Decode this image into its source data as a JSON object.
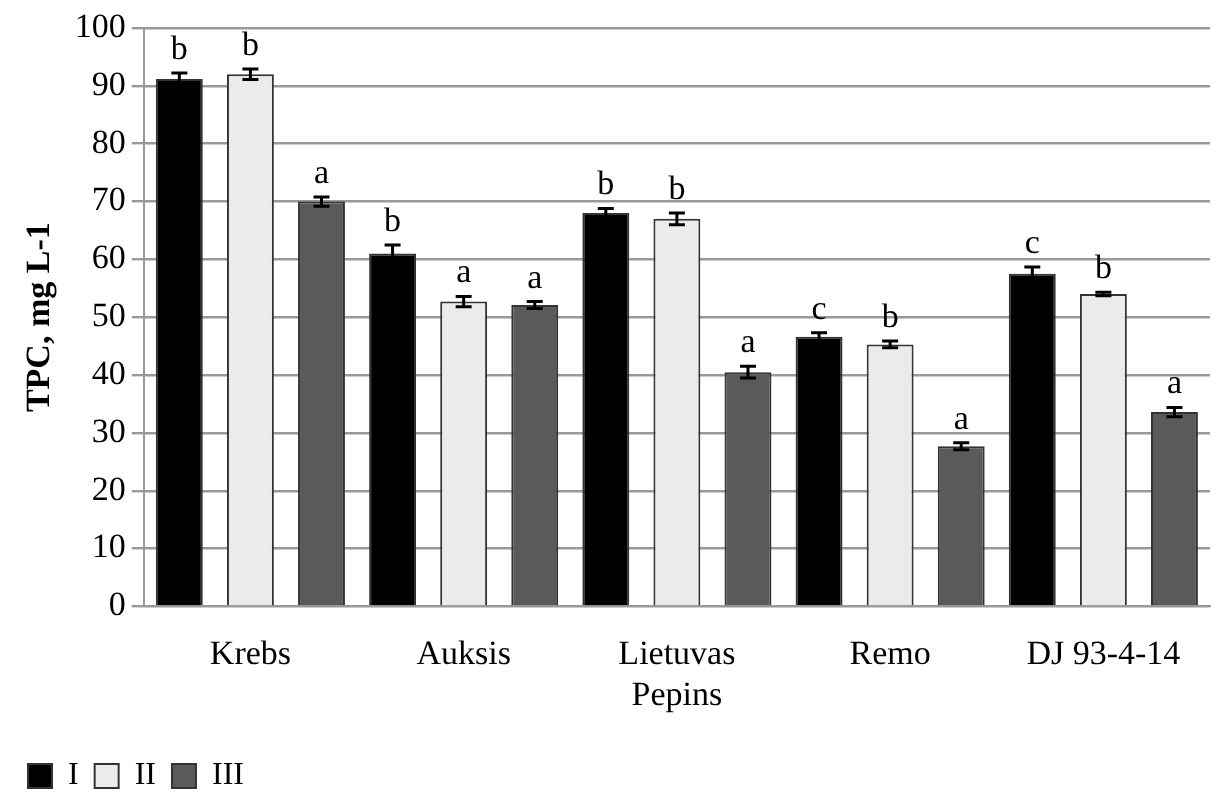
{
  "chart_data": {
    "type": "bar",
    "ylabel": "TPC, mg L-1",
    "categories": [
      "Krebs",
      "Auksis",
      "Lietuvas Pepins",
      "Remo",
      "DJ 93-4-14"
    ],
    "series": [
      {
        "name": "I",
        "color": "#000000",
        "values": [
          91.2,
          61,
          68,
          46.6,
          57.5
        ],
        "errors": [
          1,
          1.5,
          0.8,
          0.7,
          1.2
        ]
      },
      {
        "name": "II",
        "color": "#ebebeb",
        "values": [
          92,
          52.7,
          67,
          45.3,
          54
        ],
        "errors": [
          0.9,
          0.9,
          1,
          0.6,
          0.3
        ]
      },
      {
        "name": "III",
        "color": "#5a5a5a",
        "values": [
          70,
          52.1,
          40.5,
          27.7,
          33.6
        ],
        "errors": [
          0.8,
          0.6,
          1,
          0.6,
          0.8
        ]
      }
    ],
    "ylim": [
      0,
      100
    ],
    "yticks": [
      0,
      10,
      20,
      30,
      40,
      50,
      60,
      70,
      80,
      90,
      100
    ],
    "grid": "y",
    "legend": "bottom left",
    "annotations": [
      "b",
      "b",
      "a",
      "b",
      "a",
      "a",
      "b",
      "b",
      "a",
      "c",
      "b",
      "a",
      "c",
      "b",
      "a"
    ]
  }
}
